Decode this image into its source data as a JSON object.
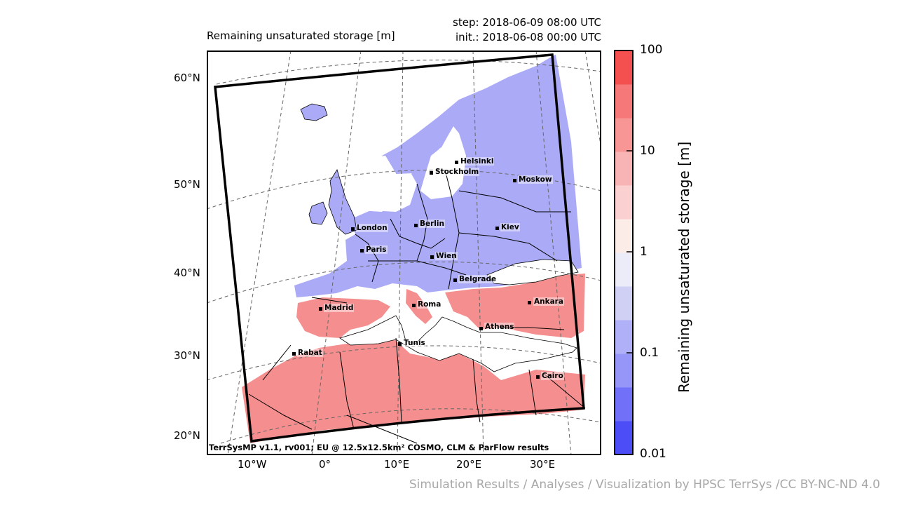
{
  "header": {
    "variable_title": "Remaining unsaturated storage [m]",
    "step_line": "step: 2018-06-09 08:00 UTC",
    "init_line": "init.: 2018-06-08 00:00 UTC"
  },
  "map": {
    "latitude_labels": [
      "60°N",
      "50°N",
      "40°N",
      "30°N",
      "20°N"
    ],
    "longitude_labels": [
      "10°W",
      "0°",
      "10°E",
      "20°E",
      "30°E"
    ],
    "model_credit": "TerrSysMP v1.1, rv001; EU @ 12.5x12.5km² COSMO, CLM & ParFlow results",
    "cities": [
      "Helsinki",
      "Stockholm",
      "Moskow",
      "London",
      "Berlin",
      "Kiev",
      "Paris",
      "Wien",
      "Belgrade",
      "Madrid",
      "Roma",
      "Ankara",
      "Athens",
      "Tunis",
      "Rabat",
      "Cairo"
    ],
    "colors": {
      "low_storage": "#aaaaf6",
      "high_storage": "#f58f8f",
      "sea": "#ffffff",
      "border": "#000000",
      "grid": "#666666"
    }
  },
  "colorbar": {
    "title": "Remaining unsaturated storage [m]",
    "tick_labels": [
      "100",
      "10",
      "1",
      "0.1",
      "0.01"
    ],
    "scale": "log",
    "range": [
      0.01,
      100
    ],
    "bins_bottom_to_top": [
      "#4d4df8",
      "#7070f8",
      "#9696f8",
      "#b0b0f8",
      "#d0d0f4",
      "#ececf8",
      "#fbece8",
      "#fbd0d0",
      "#f8b4b4",
      "#f89696",
      "#f67878",
      "#f45050"
    ]
  },
  "footer": {
    "credit": "Simulation Results / Analyses / Visualization by HPSC TerrSys /CC BY-NC-ND 4.0"
  }
}
